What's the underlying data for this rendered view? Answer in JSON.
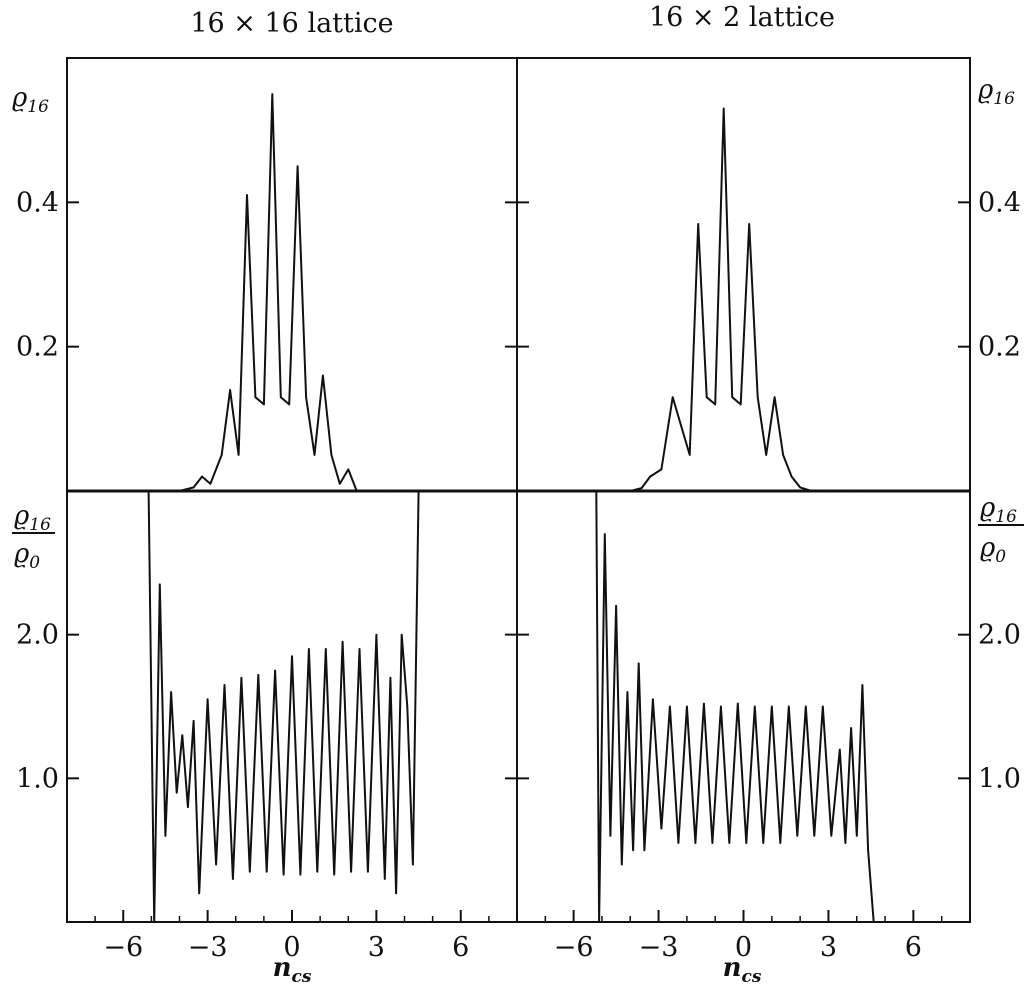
{
  "titles": {
    "left": "16 × 16 lattice",
    "right": "16 × 2 lattice"
  },
  "xlabel": "n",
  "xlabel_sub": "cs",
  "ylabel_top": "ϱ",
  "ylabel_top_sub": "16",
  "ylabel_bottom_num": "ϱ",
  "ylabel_bottom_num_sub": "16",
  "ylabel_bottom_den": "ϱ",
  "ylabel_bottom_den_sub": "0",
  "x_tick_labels": [
    "−6",
    "−3",
    "0",
    "3",
    "6"
  ],
  "top_tick_labels": [
    "0.2",
    "0.4"
  ],
  "bottom_tick_labels": [
    "1.0",
    "2.0"
  ],
  "colors": {
    "line": "#111111",
    "frame": "#111111"
  },
  "chart_data": [
    {
      "panel": "top-left",
      "type": "line",
      "title": "16 × 16 lattice",
      "xlabel": "n_cs",
      "ylabel": "ϱ16",
      "xlim": [
        -8,
        8
      ],
      "ylim": [
        0,
        0.6
      ],
      "x_ticks": [
        -6,
        -3,
        0,
        3,
        6
      ],
      "y_ticks": [
        0.2,
        0.4
      ],
      "series": [
        {
          "x": [
            -4,
            -3.5,
            -3.2,
            -2.9,
            -2.5,
            -2.2,
            -1.9,
            -1.6,
            -1.3,
            -1.0,
            -0.7,
            -0.4,
            -0.1,
            0.2,
            0.5,
            0.8,
            1.1,
            1.4,
            1.7,
            2.0,
            2.3,
            2.6,
            2.9,
            3.2,
            3.6,
            4.0
          ],
          "y": [
            0.0,
            0.005,
            0.02,
            0.01,
            0.05,
            0.14,
            0.05,
            0.41,
            0.13,
            0.12,
            0.55,
            0.13,
            0.12,
            0.45,
            0.13,
            0.05,
            0.16,
            0.05,
            0.01,
            0.03,
            0.0,
            0.0,
            0.0,
            0.0,
            0.0,
            0.0
          ]
        }
      ]
    },
    {
      "panel": "top-right",
      "type": "line",
      "title": "16 × 2 lattice",
      "xlabel": "n_cs",
      "ylabel": "ϱ16",
      "xlim": [
        -8,
        8
      ],
      "ylim": [
        0,
        0.6
      ],
      "x_ticks": [
        -6,
        -3,
        0,
        3,
        6
      ],
      "y_ticks": [
        0.2,
        0.4
      ],
      "series": [
        {
          "x": [
            -4,
            -3.6,
            -3.3,
            -2.9,
            -2.5,
            -2.2,
            -1.9,
            -1.6,
            -1.3,
            -1.0,
            -0.7,
            -0.4,
            -0.1,
            0.2,
            0.5,
            0.8,
            1.1,
            1.4,
            1.7,
            2.0,
            2.4,
            2.8,
            3.2,
            3.6,
            4.0
          ],
          "y": [
            0.0,
            0.004,
            0.02,
            0.03,
            0.13,
            0.09,
            0.05,
            0.37,
            0.13,
            0.12,
            0.53,
            0.13,
            0.12,
            0.37,
            0.13,
            0.05,
            0.13,
            0.05,
            0.02,
            0.005,
            0.0,
            0.0,
            0.0,
            0.0,
            0.0
          ]
        }
      ]
    },
    {
      "panel": "bottom-left",
      "type": "line",
      "title": "16 × 16 lattice",
      "xlabel": "n_cs",
      "ylabel": "ϱ16/ϱ0",
      "xlim": [
        -8,
        8
      ],
      "ylim": [
        0,
        3.0
      ],
      "x_ticks": [
        -6,
        -3,
        0,
        3,
        6
      ],
      "y_ticks": [
        1.0,
        2.0
      ],
      "series": [
        {
          "x": [
            -5.1,
            -4.9,
            -4.7,
            -4.5,
            -4.3,
            -4.1,
            -3.9,
            -3.7,
            -3.5,
            -3.3,
            -3.0,
            -2.7,
            -2.4,
            -2.1,
            -1.8,
            -1.5,
            -1.2,
            -0.9,
            -0.6,
            -0.3,
            0.0,
            0.3,
            0.6,
            0.9,
            1.2,
            1.5,
            1.8,
            2.1,
            2.4,
            2.7,
            3.0,
            3.3,
            3.5,
            3.7,
            3.9,
            4.1,
            4.3,
            4.5
          ],
          "y": [
            3.0,
            0.0,
            2.35,
            0.6,
            1.6,
            0.9,
            1.3,
            0.8,
            1.4,
            0.2,
            1.55,
            0.4,
            1.65,
            0.3,
            1.7,
            0.35,
            1.72,
            0.35,
            1.75,
            0.33,
            1.85,
            0.33,
            1.9,
            0.35,
            1.9,
            0.33,
            1.95,
            0.35,
            1.9,
            0.35,
            2.0,
            0.3,
            1.7,
            0.2,
            2.0,
            1.5,
            0.4,
            3.0
          ]
        }
      ]
    },
    {
      "panel": "bottom-right",
      "type": "line",
      "title": "16 × 2 lattice",
      "xlabel": "n_cs",
      "ylabel": "ϱ16/ϱ0",
      "xlim": [
        -8,
        8
      ],
      "ylim": [
        0,
        3.0
      ],
      "x_ticks": [
        -6,
        -3,
        0,
        3,
        6
      ],
      "y_ticks": [
        1.0,
        2.0
      ],
      "series": [
        {
          "x": [
            -5.2,
            -5.1,
            -4.9,
            -4.7,
            -4.5,
            -4.3,
            -4.1,
            -3.9,
            -3.7,
            -3.5,
            -3.2,
            -2.9,
            -2.6,
            -2.3,
            -2.0,
            -1.7,
            -1.4,
            -1.1,
            -0.8,
            -0.5,
            -0.2,
            0.1,
            0.4,
            0.7,
            1.0,
            1.3,
            1.6,
            1.9,
            2.2,
            2.5,
            2.8,
            3.1,
            3.4,
            3.6,
            3.8,
            4.0,
            4.2,
            4.4,
            4.6
          ],
          "y": [
            3.0,
            0.0,
            2.7,
            0.6,
            2.2,
            0.4,
            1.6,
            0.5,
            1.8,
            0.5,
            1.55,
            0.65,
            1.5,
            0.55,
            1.5,
            0.55,
            1.52,
            0.55,
            1.5,
            0.55,
            1.52,
            0.55,
            1.5,
            0.55,
            1.5,
            0.55,
            1.5,
            0.6,
            1.5,
            0.6,
            1.5,
            0.6,
            1.2,
            0.55,
            1.35,
            0.6,
            1.65,
            0.5,
            0.0
          ]
        }
      ]
    }
  ]
}
